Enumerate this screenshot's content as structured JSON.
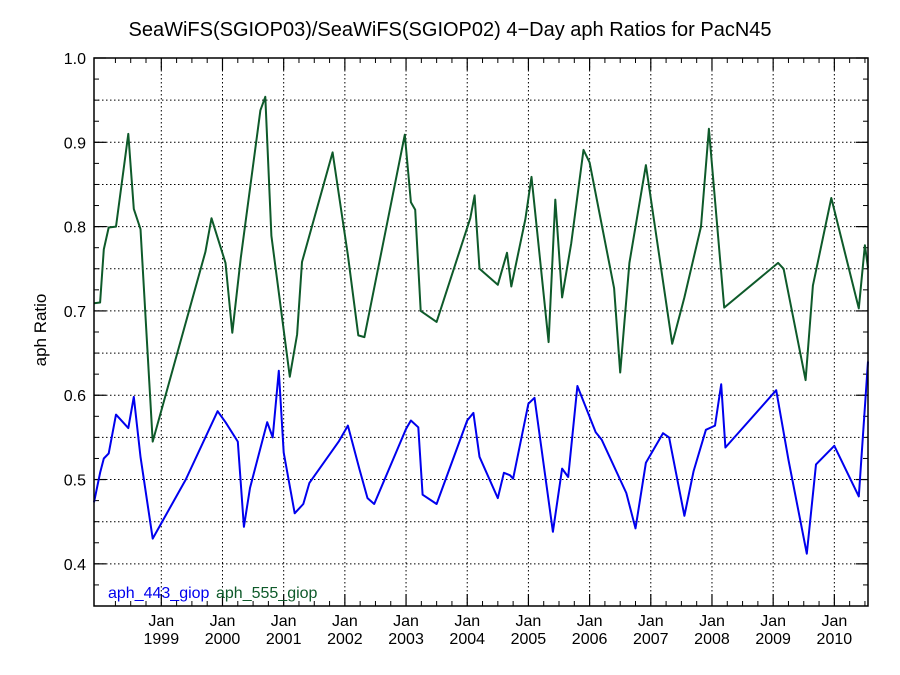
{
  "chart_data": {
    "type": "line",
    "title": "SeaWiFS(SGIOP03)/SeaWiFS(SGIOP02) 4−Day aph Ratios for PacN45",
    "xlabel": "",
    "ylabel": "aph Ratio",
    "xlim": [
      1997.9,
      2010.55
    ],
    "ylim": [
      0.35,
      1.0
    ],
    "yticks": [
      0.4,
      0.5,
      0.6,
      0.7,
      0.8,
      0.9,
      1.0
    ],
    "ytick_labels": [
      "0.4",
      "0.5",
      "0.6",
      "0.7",
      "0.8",
      "0.9",
      "1.0"
    ],
    "xticks": [
      {
        "month": "Jan",
        "year": "1999",
        "x": 1999.0
      },
      {
        "month": "Jan",
        "year": "2000",
        "x": 2000.0
      },
      {
        "month": "Jan",
        "year": "2001",
        "x": 2001.0
      },
      {
        "month": "Jan",
        "year": "2002",
        "x": 2002.0
      },
      {
        "month": "Jan",
        "year": "2003",
        "x": 2003.0
      },
      {
        "month": "Jan",
        "year": "2004",
        "x": 2004.0
      },
      {
        "month": "Jan",
        "year": "2005",
        "x": 2005.0
      },
      {
        "month": "Jan",
        "year": "2006",
        "x": 2006.0
      },
      {
        "month": "Jan",
        "year": "2007",
        "x": 2007.0
      },
      {
        "month": "Jan",
        "year": "2008",
        "x": 2008.0
      },
      {
        "month": "Jan",
        "year": "2009",
        "x": 2009.0
      },
      {
        "month": "Jan",
        "year": "2010",
        "x": 2010.0
      }
    ],
    "grid": true,
    "legend_position": "bottom-left",
    "series": [
      {
        "name": "aph_443_giop",
        "color": "#0000ee",
        "points": [
          [
            1997.9,
            0.473
          ],
          [
            1998.0,
            0.508
          ],
          [
            1998.06,
            0.525
          ],
          [
            1998.14,
            0.531
          ],
          [
            1998.26,
            0.577
          ],
          [
            1998.46,
            0.561
          ],
          [
            1998.55,
            0.598
          ],
          [
            1998.66,
            0.527
          ],
          [
            1998.86,
            0.43
          ],
          [
            1999.4,
            0.5
          ],
          [
            1999.92,
            0.581
          ],
          [
            2000.05,
            0.568
          ],
          [
            2000.25,
            0.545
          ],
          [
            2000.35,
            0.444
          ],
          [
            2000.45,
            0.49
          ],
          [
            2000.73,
            0.568
          ],
          [
            2000.82,
            0.55
          ],
          [
            2000.92,
            0.629
          ],
          [
            2001.0,
            0.532
          ],
          [
            2001.18,
            0.46
          ],
          [
            2001.32,
            0.471
          ],
          [
            2001.42,
            0.496
          ],
          [
            2001.9,
            0.545
          ],
          [
            2002.05,
            0.564
          ],
          [
            2002.24,
            0.512
          ],
          [
            2002.37,
            0.478
          ],
          [
            2002.48,
            0.471
          ],
          [
            2003.0,
            0.56
          ],
          [
            2003.08,
            0.57
          ],
          [
            2003.2,
            0.562
          ],
          [
            2003.27,
            0.482
          ],
          [
            2003.5,
            0.471
          ],
          [
            2004.0,
            0.57
          ],
          [
            2004.1,
            0.579
          ],
          [
            2004.2,
            0.527
          ],
          [
            2004.5,
            0.478
          ],
          [
            2004.6,
            0.508
          ],
          [
            2004.7,
            0.505
          ],
          [
            2004.75,
            0.501
          ],
          [
            2005.0,
            0.59
          ],
          [
            2005.1,
            0.597
          ],
          [
            2005.4,
            0.438
          ],
          [
            2005.55,
            0.513
          ],
          [
            2005.65,
            0.503
          ],
          [
            2005.8,
            0.611
          ],
          [
            2006.1,
            0.556
          ],
          [
            2006.2,
            0.547
          ],
          [
            2006.6,
            0.484
          ],
          [
            2006.75,
            0.442
          ],
          [
            2006.92,
            0.52
          ],
          [
            2007.2,
            0.555
          ],
          [
            2007.3,
            0.55
          ],
          [
            2007.55,
            0.457
          ],
          [
            2007.7,
            0.51
          ],
          [
            2007.9,
            0.559
          ],
          [
            2008.05,
            0.564
          ],
          [
            2008.15,
            0.613
          ],
          [
            2008.22,
            0.538
          ],
          [
            2009.05,
            0.606
          ],
          [
            2009.25,
            0.523
          ],
          [
            2009.55,
            0.412
          ],
          [
            2009.7,
            0.518
          ],
          [
            2010.0,
            0.54
          ],
          [
            2010.4,
            0.48
          ],
          [
            2010.55,
            0.64
          ]
        ]
      },
      {
        "name": "aph_555_giop",
        "color": "#0e5a2a",
        "points": [
          [
            1997.9,
            0.709
          ],
          [
            1998.0,
            0.71
          ],
          [
            1998.06,
            0.773
          ],
          [
            1998.14,
            0.799
          ],
          [
            1998.26,
            0.8
          ],
          [
            1998.46,
            0.91
          ],
          [
            1998.55,
            0.821
          ],
          [
            1998.66,
            0.797
          ],
          [
            1998.86,
            0.545
          ],
          [
            1999.72,
            0.77
          ],
          [
            1999.82,
            0.81
          ],
          [
            2000.05,
            0.757
          ],
          [
            2000.16,
            0.674
          ],
          [
            2000.3,
            0.763
          ],
          [
            2000.62,
            0.938
          ],
          [
            2000.7,
            0.954
          ],
          [
            2000.8,
            0.789
          ],
          [
            2001.1,
            0.622
          ],
          [
            2001.22,
            0.672
          ],
          [
            2001.3,
            0.758
          ],
          [
            2001.8,
            0.888
          ],
          [
            2002.05,
            0.766
          ],
          [
            2002.22,
            0.671
          ],
          [
            2002.32,
            0.669
          ],
          [
            2002.98,
            0.909
          ],
          [
            2003.08,
            0.829
          ],
          [
            2003.15,
            0.82
          ],
          [
            2003.24,
            0.7
          ],
          [
            2003.5,
            0.687
          ],
          [
            2004.05,
            0.81
          ],
          [
            2004.12,
            0.837
          ],
          [
            2004.2,
            0.75
          ],
          [
            2004.5,
            0.731
          ],
          [
            2004.65,
            0.769
          ],
          [
            2004.72,
            0.729
          ],
          [
            2004.95,
            0.809
          ],
          [
            2005.05,
            0.859
          ],
          [
            2005.33,
            0.663
          ],
          [
            2005.44,
            0.832
          ],
          [
            2005.55,
            0.716
          ],
          [
            2005.7,
            0.78
          ],
          [
            2005.9,
            0.891
          ],
          [
            2006.0,
            0.876
          ],
          [
            2006.4,
            0.727
          ],
          [
            2006.5,
            0.627
          ],
          [
            2006.65,
            0.757
          ],
          [
            2006.92,
            0.873
          ],
          [
            2007.35,
            0.661
          ],
          [
            2007.55,
            0.716
          ],
          [
            2007.82,
            0.8
          ],
          [
            2007.95,
            0.916
          ],
          [
            2008.2,
            0.704
          ],
          [
            2009.08,
            0.757
          ],
          [
            2009.17,
            0.75
          ],
          [
            2009.53,
            0.618
          ],
          [
            2009.65,
            0.73
          ],
          [
            2009.95,
            0.834
          ],
          [
            2010.4,
            0.703
          ],
          [
            2010.5,
            0.778
          ],
          [
            2010.55,
            0.751
          ]
        ]
      }
    ]
  }
}
